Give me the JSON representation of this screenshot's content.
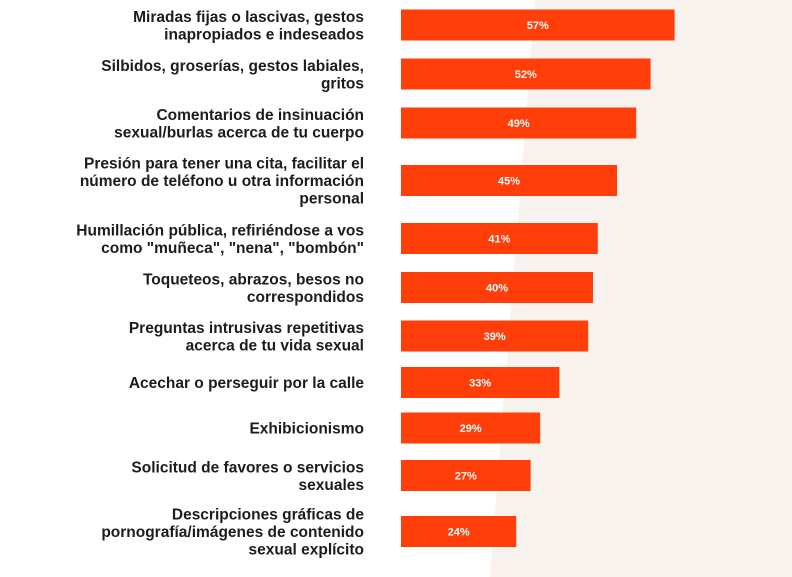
{
  "colors": {
    "bar": "#ff3e0a",
    "background": "#ffffff",
    "background_wedge": "#f8f2ef",
    "label_text": "#1c1c1c",
    "value_text": "#ffffff"
  },
  "chart_data": {
    "type": "bar",
    "orientation": "horizontal",
    "categories": [
      [
        "Miradas fijas o lascivas, gestos",
        "inapropiados e indeseados"
      ],
      [
        "Silbidos, groserías, gestos labiales,",
        "gritos"
      ],
      [
        "Comentarios de insinuación",
        "sexual/burlas acerca de tu cuerpo"
      ],
      [
        "Presión para tener una cita, facilitar el",
        "número de teléfono u otra información",
        "personal"
      ],
      [
        "Humillación pública, refiriéndose a vos",
        "como \"muñeca\", \"nena\", \"bombón\""
      ],
      [
        "Toqueteos, abrazos, besos no",
        "correspondidos"
      ],
      [
        "Preguntas intrusivas repetitivas",
        "acerca de tu vida sexual"
      ],
      [
        "Acechar o perseguir por la calle"
      ],
      [
        "Exhibicionismo"
      ],
      [
        "Solicitud de favores o servicios",
        "sexuales"
      ],
      [
        "Descripciones gráficas de",
        "pornografía/imágenes de contenido",
        "sexual explícito"
      ]
    ],
    "values": [
      57,
      52,
      49,
      45,
      41,
      40,
      39,
      33,
      29,
      27,
      24
    ],
    "value_labels": [
      "57%",
      "52%",
      "49%",
      "45%",
      "41%",
      "40%",
      "39%",
      "33%",
      "29%",
      "27%",
      "24%"
    ],
    "unit": "%",
    "xlim": [
      0,
      100
    ],
    "grid": false,
    "legend": "none"
  }
}
